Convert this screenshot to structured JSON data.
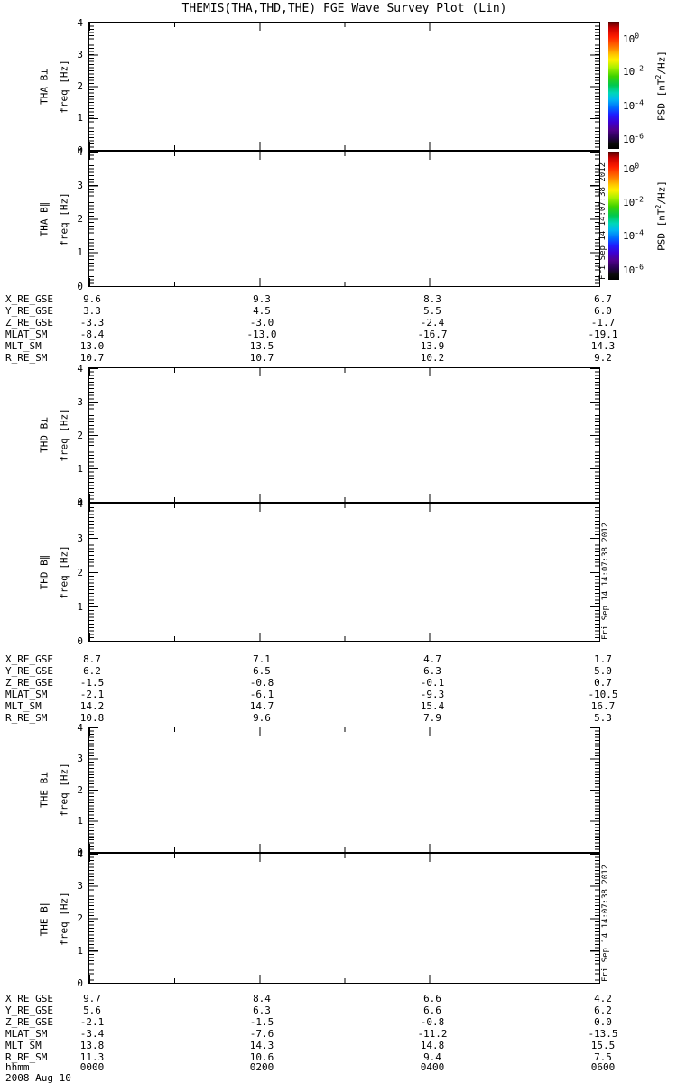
{
  "title": "THEMIS(THA,THD,THE) FGE Wave Survey Plot (Lin)",
  "timestamp": "Fri Sep 14 14:07:38 2012",
  "chart_data": {
    "type": "heatmap",
    "title": "THEMIS(THA,THD,THE) FGE Wave Survey Plot (Lin)",
    "note": "All six spectrogram panels are blank (no PSD data rendered)",
    "grid": false,
    "x_axis": {
      "label": "hhmm",
      "date": "2008 Aug 10",
      "tick_labels": [
        "0000",
        "0200",
        "0400",
        "0600"
      ],
      "range_hours": [
        0,
        6
      ],
      "minor_tick_interval_hours": 1
    },
    "y_axis": {
      "label": "freq [Hz]",
      "tick_labels": [
        "0",
        "1",
        "2",
        "3",
        "4"
      ],
      "range": [
        0,
        4
      ]
    },
    "colorbar": {
      "label_prefix": "PSD [nT",
      "label_sup": "2",
      "label_suffix": "/Hz]",
      "scale": "log",
      "tick_exponents": [
        "0",
        "-2",
        "-4",
        "-6"
      ],
      "tick_values": [
        1,
        0.01,
        0.0001,
        1e-06
      ],
      "gradient": [
        "#500000 0%",
        "#c80000 5%",
        "#ff1e00 12%",
        "#ff7800 20%",
        "#ffc800 26%",
        "#fff000 30%",
        "#aaf000 36%",
        "#3cd200 43%",
        "#00c850 50%",
        "#00d7b9 56%",
        "#00b9f0 61%",
        "#0064ff 68%",
        "#1e1eff 73%",
        "#3c00d2 79%",
        "#50008c 85%",
        "#280050 91%",
        "#0a0a0a 96%",
        "#000000 100%"
      ]
    },
    "panels": [
      {
        "id": "tha-bperp",
        "name": "THA B⊥",
        "ylabel": "freq [Hz]"
      },
      {
        "id": "tha-bpar",
        "name": "THA B∥",
        "ylabel": "freq [Hz]"
      },
      {
        "id": "thd-bperp",
        "name": "THD B⊥",
        "ylabel": "freq [Hz]"
      },
      {
        "id": "thd-bpar",
        "name": "THD B∥",
        "ylabel": "freq [Hz]"
      },
      {
        "id": "the-bperp",
        "name": "THE B⊥",
        "ylabel": "freq [Hz]"
      },
      {
        "id": "the-bpar",
        "name": "THE B∥",
        "ylabel": "freq [Hz]"
      }
    ],
    "ephemeris_tables": [
      {
        "probe": "THA",
        "rows": [
          {
            "label": "X_RE_GSE",
            "values": [
              "9.6",
              "9.3",
              "8.3",
              "6.7"
            ]
          },
          {
            "label": "Y_RE_GSE",
            "values": [
              "3.3",
              "4.5",
              "5.5",
              "6.0"
            ]
          },
          {
            "label": "Z_RE_GSE",
            "values": [
              "-3.3",
              "-3.0",
              "-2.4",
              "-1.7"
            ]
          },
          {
            "label": "MLAT_SM",
            "values": [
              "-8.4",
              "-13.0",
              "-16.7",
              "-19.1"
            ]
          },
          {
            "label": "MLT_SM",
            "values": [
              "13.0",
              "13.5",
              "13.9",
              "14.3"
            ]
          },
          {
            "label": "R_RE_SM",
            "values": [
              "10.7",
              "10.7",
              "10.2",
              "9.2"
            ]
          }
        ]
      },
      {
        "probe": "THD",
        "rows": [
          {
            "label": "X_RE_GSE",
            "values": [
              "8.7",
              "7.1",
              "4.7",
              "1.7"
            ]
          },
          {
            "label": "Y_RE_GSE",
            "values": [
              "6.2",
              "6.5",
              "6.3",
              "5.0"
            ]
          },
          {
            "label": "Z_RE_GSE",
            "values": [
              "-1.5",
              "-0.8",
              "-0.1",
              "0.7"
            ]
          },
          {
            "label": "MLAT_SM",
            "values": [
              "-2.1",
              "-6.1",
              "-9.3",
              "-10.5"
            ]
          },
          {
            "label": "MLT_SM",
            "values": [
              "14.2",
              "14.7",
              "15.4",
              "16.7"
            ]
          },
          {
            "label": "R_RE_SM",
            "values": [
              "10.8",
              "9.6",
              "7.9",
              "5.3"
            ]
          }
        ]
      },
      {
        "probe": "THE",
        "rows": [
          {
            "label": "X_RE_GSE",
            "values": [
              "9.7",
              "8.4",
              "6.6",
              "4.2"
            ]
          },
          {
            "label": "Y_RE_GSE",
            "values": [
              "5.6",
              "6.3",
              "6.6",
              "6.2"
            ]
          },
          {
            "label": "Z_RE_GSE",
            "values": [
              "-2.1",
              "-1.5",
              "-0.8",
              "0.0"
            ]
          },
          {
            "label": "MLAT_SM",
            "values": [
              "-3.4",
              "-7.6",
              "-11.2",
              "-13.5"
            ]
          },
          {
            "label": "MLT_SM",
            "values": [
              "13.8",
              "14.3",
              "14.8",
              "15.5"
            ]
          },
          {
            "label": "R_RE_SM",
            "values": [
              "11.3",
              "10.6",
              "9.4",
              "7.5"
            ]
          }
        ]
      }
    ]
  }
}
